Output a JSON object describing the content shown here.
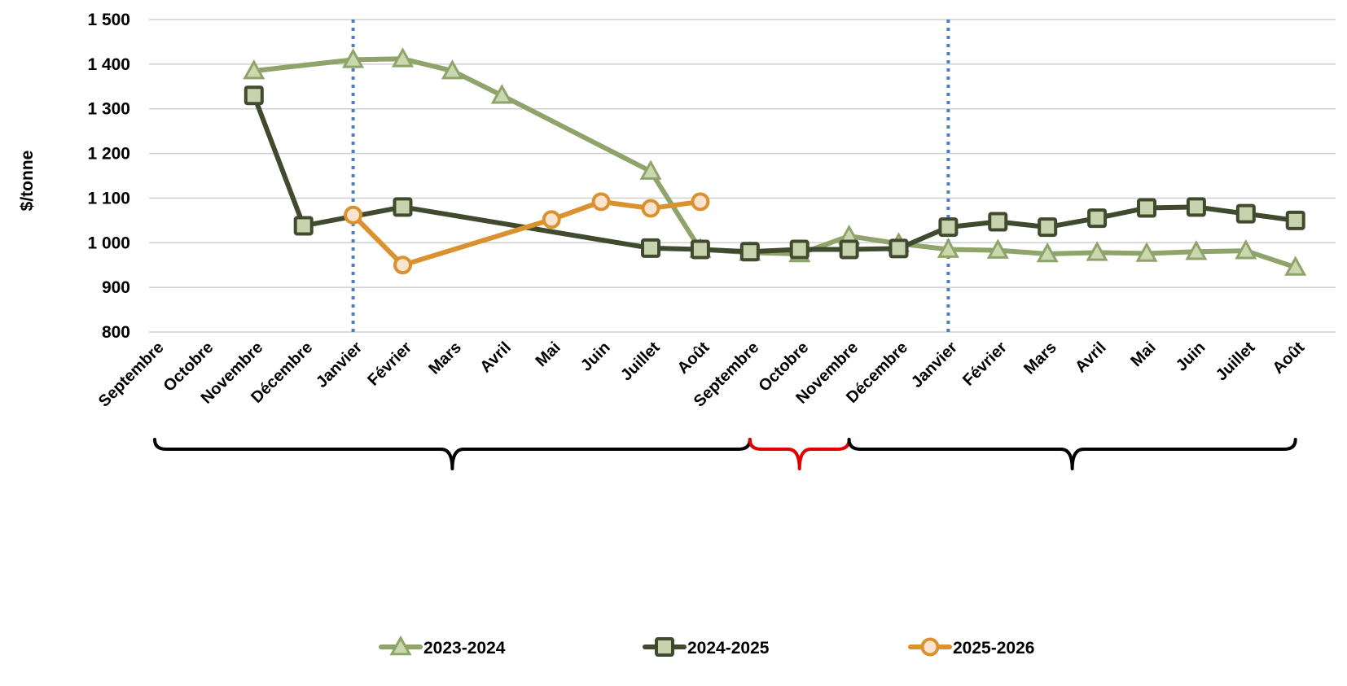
{
  "chart_data": {
    "type": "line",
    "ylabel": "$/tonne",
    "xlabel": "",
    "ylim": [
      800,
      1500
    ],
    "yticks": [
      800,
      900,
      1000,
      1100,
      1200,
      1300,
      1400,
      1500
    ],
    "ytick_labels": [
      "800",
      "900",
      "1 000",
      "1 100",
      "1 200",
      "1 300",
      "1 400",
      "1 500"
    ],
    "grid": true,
    "legend_position": "bottom",
    "categories": [
      "Septembre",
      "Octobre",
      "Novembre",
      "Décembre",
      "Janvier",
      "Février",
      "Mars",
      "Avril",
      "Mai",
      "Juin",
      "Juillet",
      "Août",
      "Septembre",
      "Octobre",
      "Novembre",
      "Décembre",
      "Janvier",
      "Février",
      "Mars",
      "Avril",
      "Mai",
      "Juin",
      "Juillet",
      "Août"
    ],
    "vertical_markers": [
      4,
      16
    ],
    "series": [
      {
        "name": "2023-2024",
        "color": "#8ea46a",
        "marker": "triangle",
        "values": [
          null,
          null,
          1385,
          null,
          1410,
          1412,
          1385,
          1330,
          null,
          null,
          1160,
          985,
          978,
          975,
          1015,
          998,
          985,
          983,
          975,
          978,
          976,
          980,
          982,
          945
        ]
      },
      {
        "name": "2024-2025",
        "color": "#3f4a2e",
        "marker": "square",
        "values": [
          null,
          null,
          1330,
          1038,
          null,
          1080,
          null,
          null,
          null,
          null,
          988,
          985,
          980,
          985,
          985,
          987,
          1035,
          1047,
          1035,
          1055,
          1078,
          1080,
          1065,
          1050
        ]
      },
      {
        "name": "2025-2026",
        "color": "#d9922e",
        "marker": "circle",
        "values": [
          null,
          null,
          null,
          null,
          1062,
          950,
          null,
          null,
          1052,
          1092,
          1077,
          1092,
          null,
          null,
          null,
          null,
          null,
          null,
          null,
          null,
          null,
          null,
          null,
          null
        ]
      }
    ],
    "braces": [
      {
        "from": 0,
        "to": 12,
        "color": "#000000"
      },
      {
        "from": 12,
        "to": 14,
        "color": "#e00000"
      },
      {
        "from": 14,
        "to": 23,
        "color": "#000000"
      }
    ]
  }
}
